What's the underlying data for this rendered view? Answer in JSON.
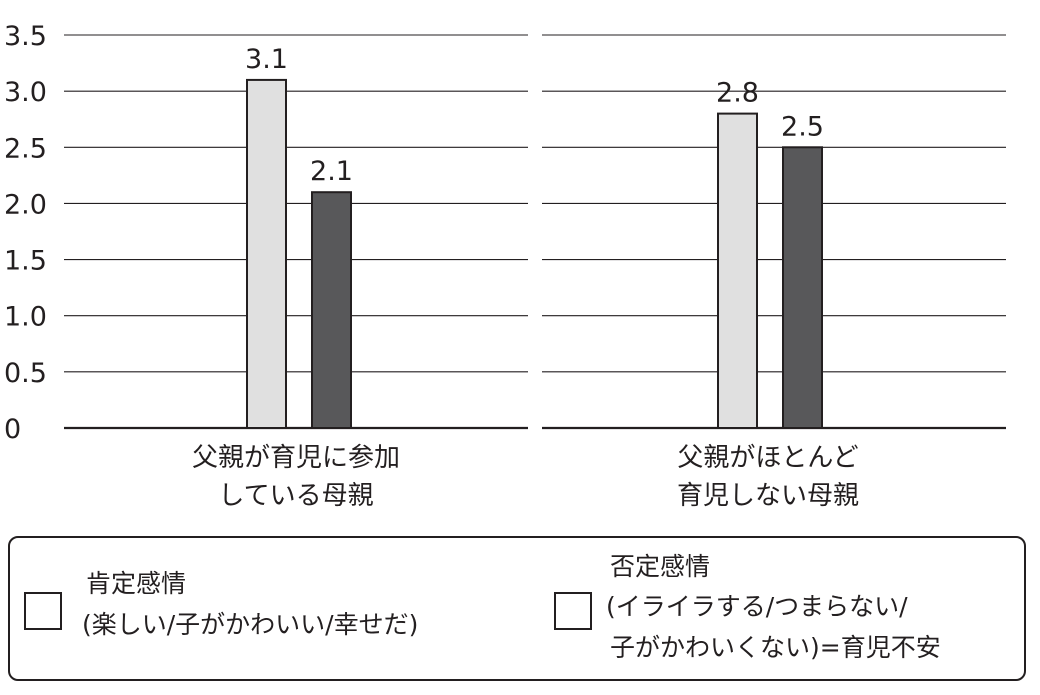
{
  "chart_data": {
    "type": "bar",
    "categories": [
      [
        "父親が育児に参加",
        "している母親"
      ],
      [
        "父親がほとんど",
        "育児しない母親"
      ]
    ],
    "series": [
      {
        "name": "肯定感情",
        "name_detail": "(楽しい/子がかわいい/幸せだ)",
        "values": [
          3.1,
          2.8
        ],
        "color": "#e0e0e0"
      },
      {
        "name": "否定感情",
        "name_detail_lines": [
          "(イライラする/つまらない/",
          "子がかわいくない)=育児不安"
        ],
        "values": [
          2.1,
          2.5
        ],
        "color": "#58585a"
      }
    ],
    "data_labels": [
      [
        "3.1",
        "2.8"
      ],
      [
        "2.1",
        "2.5"
      ]
    ],
    "yticks": [
      "0",
      "0.5",
      "1.0",
      "1.5",
      "2.0",
      "2.5",
      "3.0",
      "3.5"
    ],
    "ylim": [
      0,
      3.5
    ],
    "grid": true,
    "legend_position": "bottom",
    "title": "",
    "xlabel": "",
    "ylabel": ""
  }
}
